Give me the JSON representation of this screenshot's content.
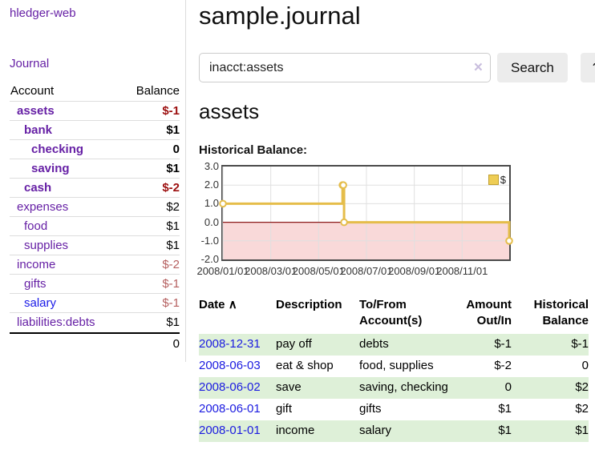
{
  "app": {
    "brand": "hledger-web",
    "nav_journal": "Journal"
  },
  "sidebar": {
    "headers": {
      "account": "Account",
      "balance": "Balance"
    },
    "accounts": [
      {
        "name": "assets",
        "level": 1,
        "bold": true,
        "balance": "$-1",
        "negative": true,
        "link_color": "purple"
      },
      {
        "name": "bank",
        "level": 2,
        "bold": true,
        "balance": "$1",
        "negative": false,
        "link_color": "purple"
      },
      {
        "name": "checking",
        "level": 3,
        "bold": true,
        "balance": "0",
        "negative": false,
        "link_color": "purple"
      },
      {
        "name": "saving",
        "level": 3,
        "bold": true,
        "balance": "$1",
        "negative": false,
        "link_color": "purple"
      },
      {
        "name": "cash",
        "level": 2,
        "bold": true,
        "balance": "$-2",
        "negative": true,
        "link_color": "purple"
      },
      {
        "name": "expenses",
        "level": 1,
        "bold": false,
        "balance": "$2",
        "negative": false,
        "link_color": "purple"
      },
      {
        "name": "food",
        "level": 2,
        "bold": false,
        "balance": "$1",
        "negative": false,
        "link_color": "purple"
      },
      {
        "name": "supplies",
        "level": 2,
        "bold": false,
        "balance": "$1",
        "negative": false,
        "link_color": "purple"
      },
      {
        "name": "income",
        "level": 1,
        "bold": false,
        "balance": "$-2",
        "negative": true,
        "link_color": "purple"
      },
      {
        "name": "gifts",
        "level": 2,
        "bold": false,
        "balance": "$-1",
        "negative": true,
        "link_color": "purple"
      },
      {
        "name": "salary",
        "level": 2,
        "bold": false,
        "balance": "$-1",
        "negative": true,
        "link_color": "blue"
      },
      {
        "name": "liabilities:debts",
        "level": 1,
        "bold": false,
        "balance": "$1",
        "negative": false,
        "link_color": "purple"
      }
    ],
    "total": "0"
  },
  "header": {
    "title": "sample.journal"
  },
  "search": {
    "value": "inacct:assets",
    "clear_icon": "×",
    "button_label": "Search",
    "help_label": "?"
  },
  "account_page": {
    "title": "assets",
    "chart_label": "Historical Balance:"
  },
  "chart_data": {
    "type": "line",
    "step": true,
    "title": "Historical Balance",
    "series": [
      {
        "name": "$",
        "color": "#e5bd4a",
        "points": [
          {
            "date": "2008-01-01",
            "value": 1
          },
          {
            "date": "2008-06-01",
            "value": 2
          },
          {
            "date": "2008-06-02",
            "value": 2
          },
          {
            "date": "2008-06-03",
            "value": 0
          },
          {
            "date": "2008-12-31",
            "value": -1
          }
        ]
      }
    ],
    "ylim": [
      -2,
      3
    ],
    "y_ticks": [
      {
        "v": 3,
        "label": "3.0"
      },
      {
        "v": 2,
        "label": "2.0"
      },
      {
        "v": 1,
        "label": "1.0"
      },
      {
        "v": 0,
        "label": "0.0"
      },
      {
        "v": -1,
        "label": "-1.0"
      },
      {
        "v": -2,
        "label": "-2.0"
      }
    ],
    "x_ticks": [
      {
        "months": 0,
        "label": "2008/01/01"
      },
      {
        "months": 2,
        "label": "2008/03/01"
      },
      {
        "months": 4,
        "label": "2008/05/01"
      },
      {
        "months": 6,
        "label": "2008/07/01"
      },
      {
        "months": 8,
        "label": "2008/09/01"
      },
      {
        "months": 10,
        "label": "2008/11/01"
      }
    ],
    "grid": true,
    "legend_position": "top-right",
    "legend": {
      "label": "$",
      "swatch_color": "#eecd55"
    },
    "negative_region_color": "#f9d9d9",
    "zero_line_color": "#8b1a1a",
    "gridline_color": "#e0e0e0"
  },
  "register": {
    "headers": {
      "date": "Date",
      "sort_indicator": "∧",
      "description": "Description",
      "accounts": "To/From Account(s)",
      "amount": "Amount Out/In",
      "balance": "Historical Balance"
    },
    "rows": [
      {
        "date": "2008-12-31",
        "description": "pay off",
        "accounts": "debts",
        "amount": "$-1",
        "amount_negative": true,
        "balance": "$-1",
        "balance_negative": true
      },
      {
        "date": "2008-06-03",
        "description": "eat & shop",
        "accounts": "food, supplies",
        "amount": "$-2",
        "amount_negative": true,
        "balance": "0",
        "balance_negative": false
      },
      {
        "date": "2008-06-02",
        "description": "save",
        "accounts": "saving, checking",
        "amount": "0",
        "amount_negative": false,
        "balance": "$2",
        "balance_negative": false
      },
      {
        "date": "2008-06-01",
        "description": "gift",
        "accounts": "gifts",
        "amount": "$1",
        "amount_negative": false,
        "balance": "$2",
        "balance_negative": false
      },
      {
        "date": "2008-01-01",
        "description": "income",
        "accounts": "salary",
        "amount": "$1",
        "amount_negative": false,
        "balance": "$1",
        "balance_negative": false
      }
    ]
  },
  "colors": {
    "link_purple": "#6620a5",
    "link_blue": "#1a1ae8",
    "negative_dark": "#9c0f0f",
    "negative_soft": "#b55f5f",
    "table_negative": "#8f1a1a",
    "row_stripe_green": "#def0d8",
    "chart_line_gold": "#e5bd4a",
    "chart_negative_pink": "#f9d9d9"
  }
}
